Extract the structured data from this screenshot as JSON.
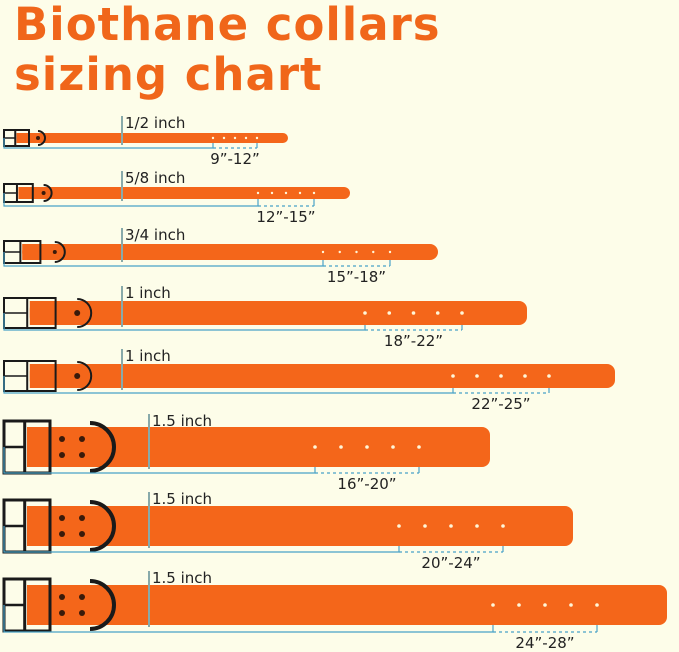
{
  "title_line1": "Biothane collars",
  "title_line2": "sizing chart",
  "colors": {
    "title": "#f0661a",
    "strap": "#f4661a",
    "bracket": "#4aa3c8",
    "buckle": "#1a1a1a",
    "background": "#fdfde9"
  },
  "collars": [
    {
      "width": "1/2 inch",
      "range": "9”-12”"
    },
    {
      "width": "5/8 inch",
      "range": "12”-15”"
    },
    {
      "width": "3/4 inch",
      "range": "15”-18”"
    },
    {
      "width": "1 inch",
      "range": "18”-22”"
    },
    {
      "width": "1 inch",
      "range": "22”-25”"
    },
    {
      "width": "1.5 inch",
      "range": "16”-20”"
    },
    {
      "width": "1.5 inch",
      "range": "20”-24”"
    },
    {
      "width": "1.5 inch",
      "range": "24”-28”"
    }
  ]
}
